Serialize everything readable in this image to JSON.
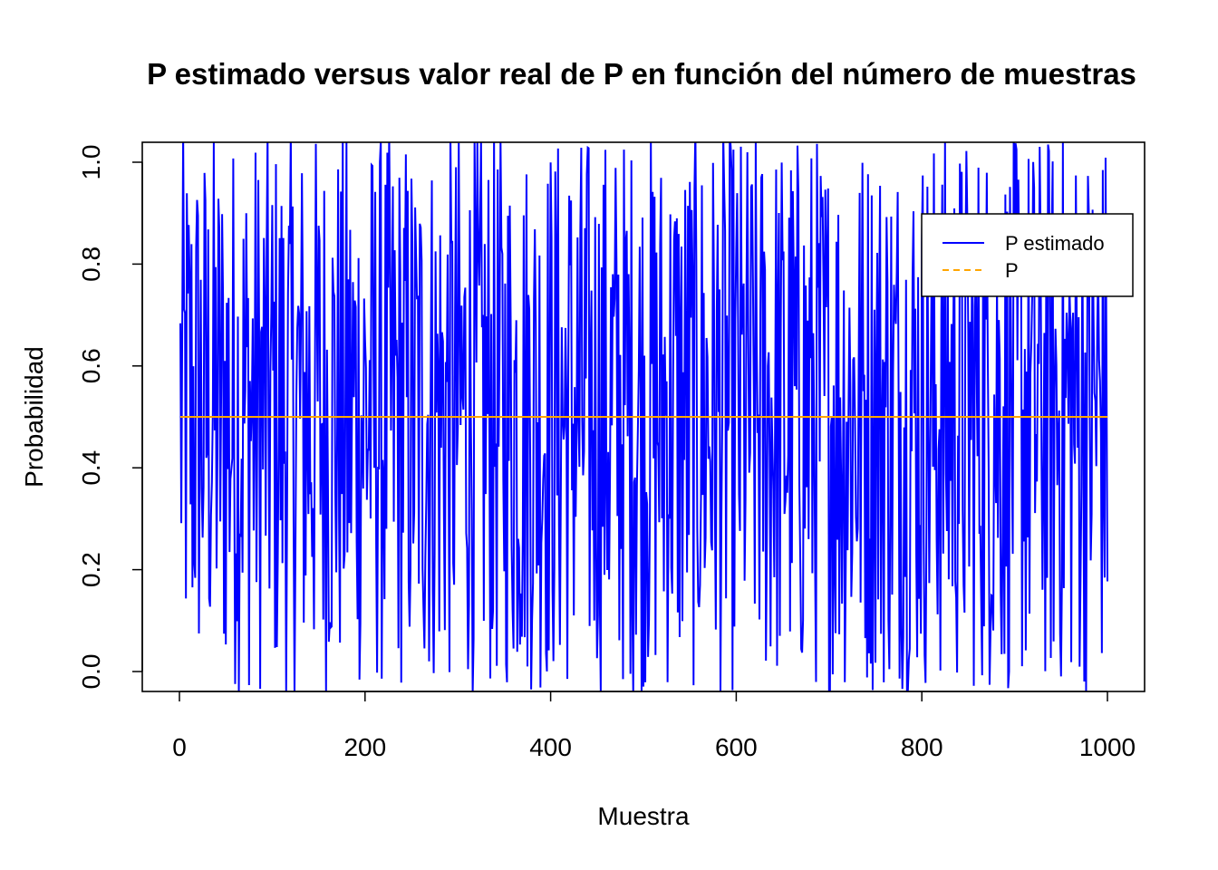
{
  "chart_data": {
    "type": "line",
    "title": "P estimado versus valor real de P en función del número de muestras",
    "xlabel": "Muestra",
    "ylabel": "Probabilidad",
    "xlim": [
      0,
      1000
    ],
    "ylim": [
      0.0,
      1.0
    ],
    "x_ticks": [
      "0",
      "200",
      "400",
      "600",
      "800",
      "1000"
    ],
    "y_ticks": [
      "0.0",
      "0.2",
      "0.4",
      "0.6",
      "0.8",
      "1.0"
    ],
    "grid": false,
    "legend_position": "top-right",
    "series": [
      {
        "name": "P estimado",
        "color": "#0000FF",
        "line_style": "solid",
        "n_points": 1000,
        "pattern": "values fluctuate across the full range 0 to 1 around 0.5 for every sample"
      },
      {
        "name": "P",
        "color": "#FFA500",
        "line_style": "dashed",
        "x": [
          1,
          1000
        ],
        "values": [
          0.5,
          0.5
        ]
      }
    ]
  }
}
